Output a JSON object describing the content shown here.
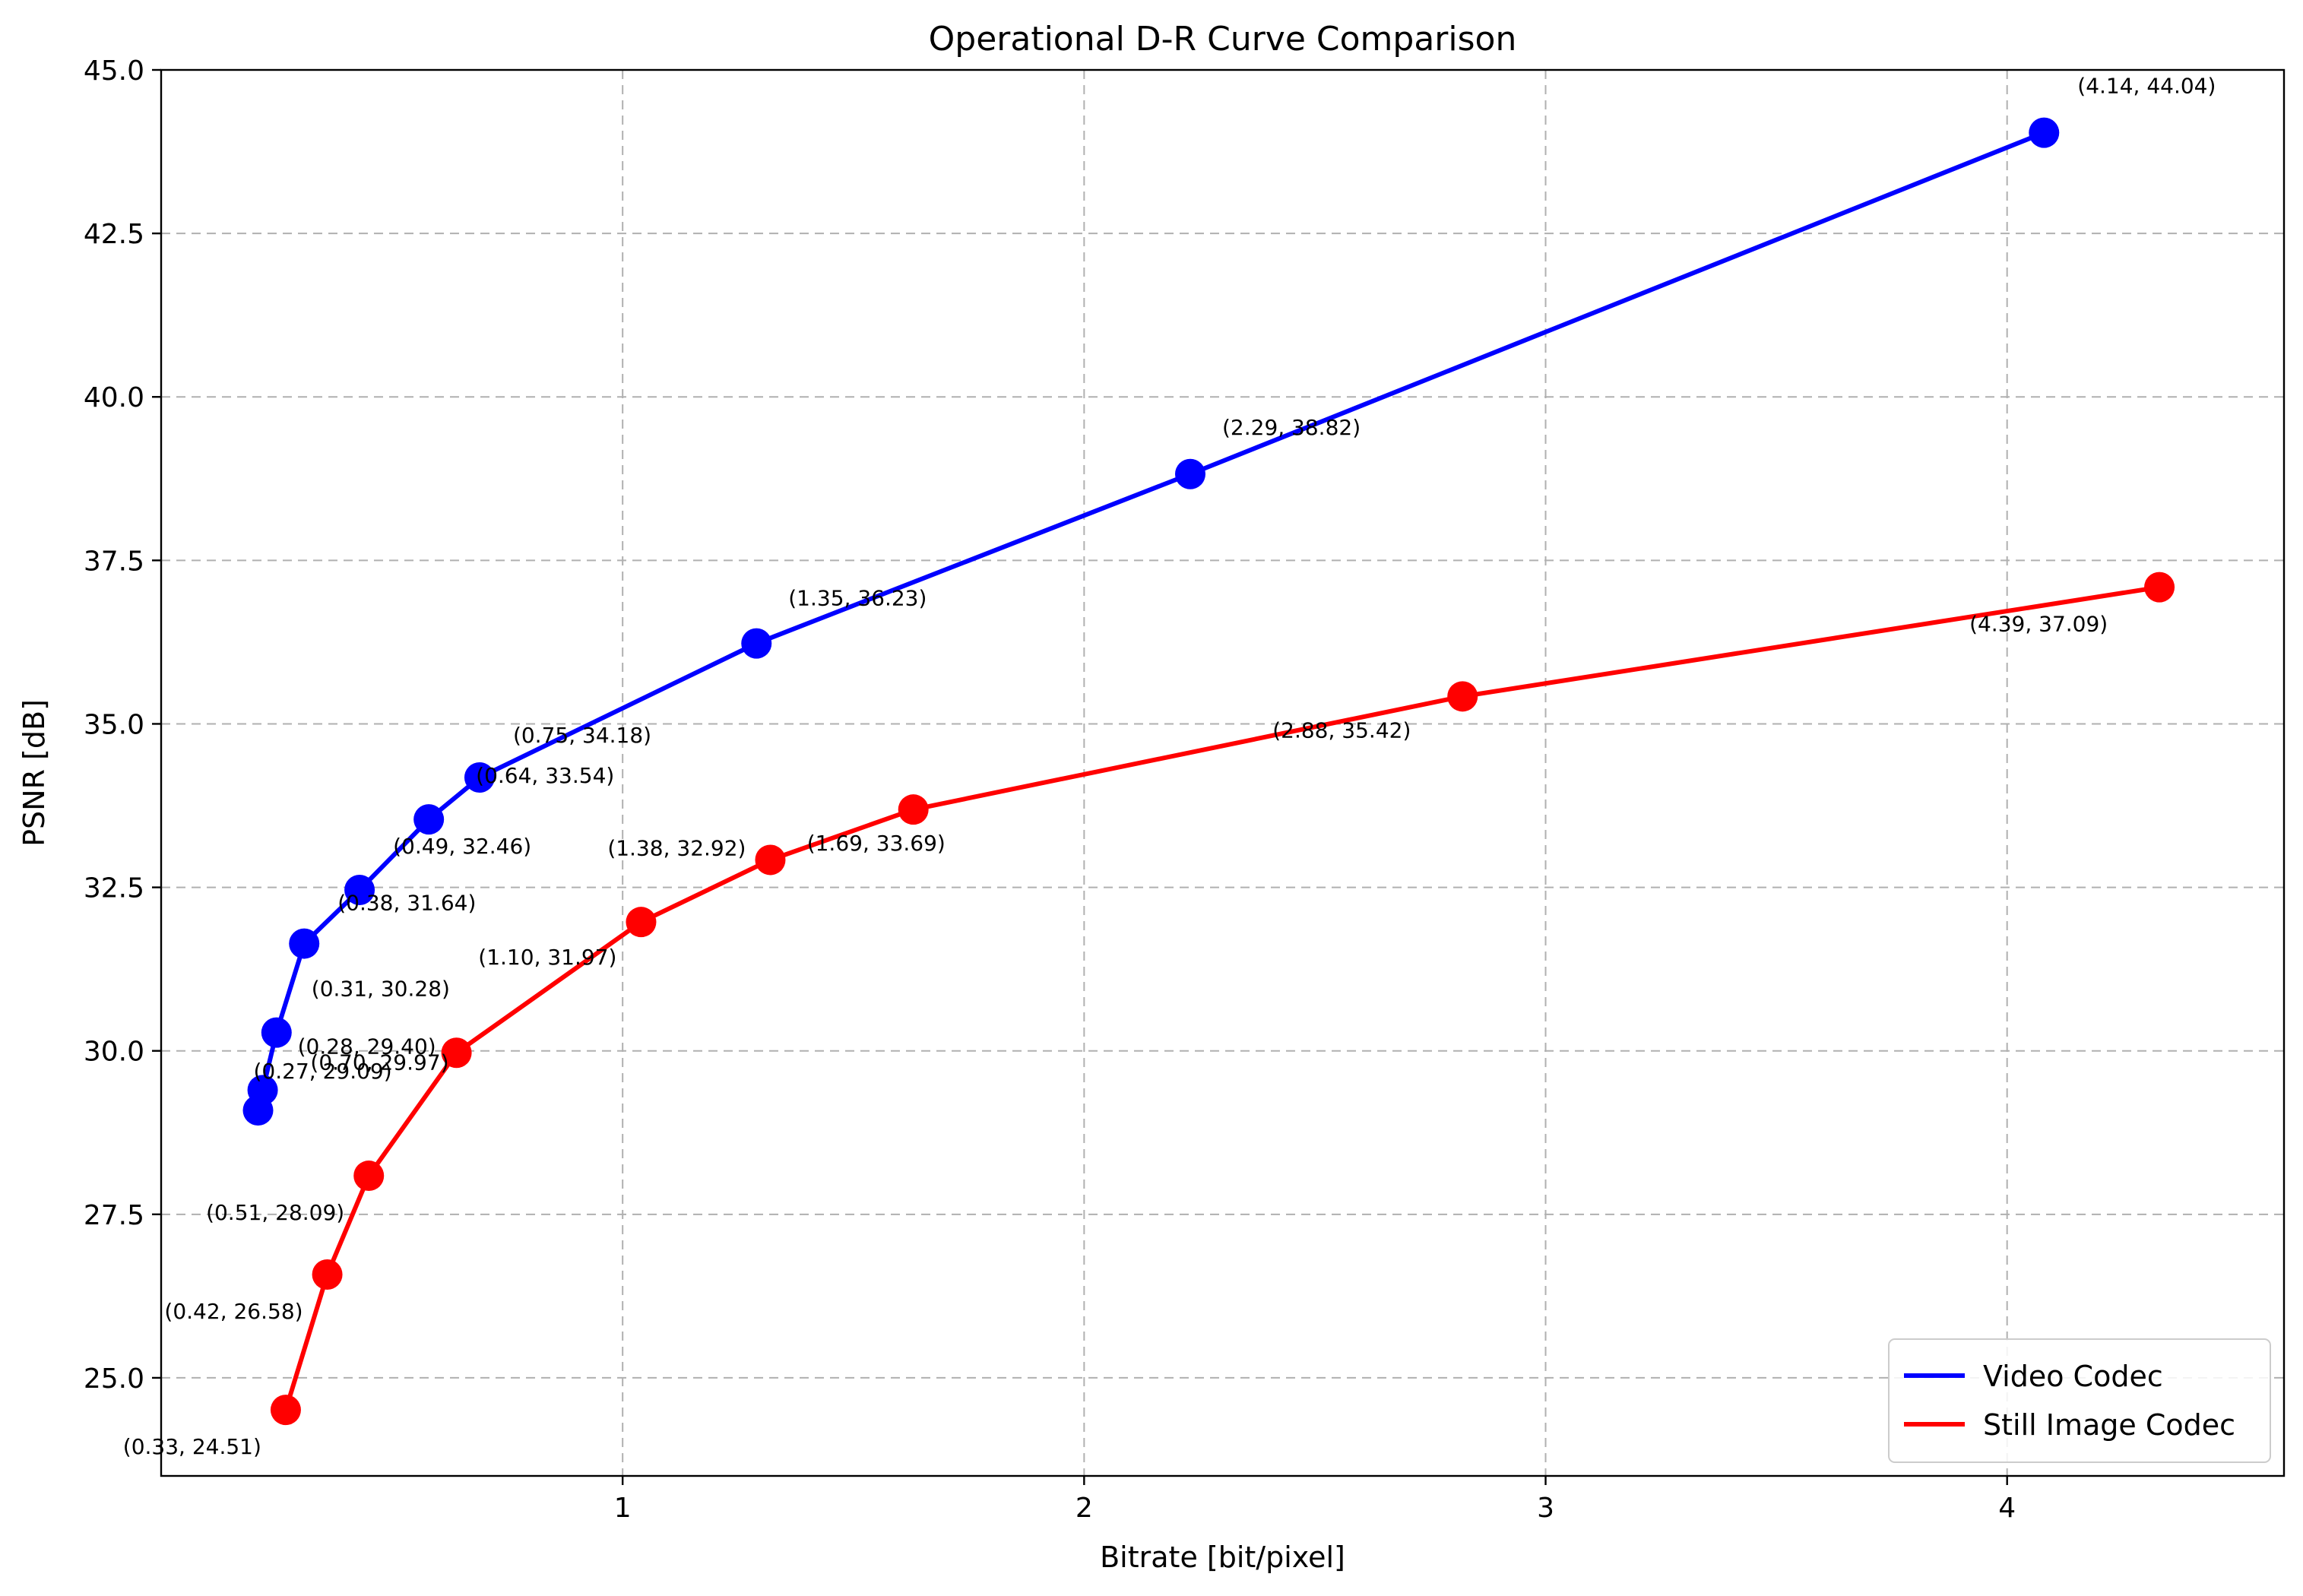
{
  "chart_data": {
    "type": "line",
    "title": "Operational D-R Curve Comparison",
    "xlabel": "Bitrate [bit/pixel]",
    "ylabel": "PSNR [dB]",
    "xlim": [
      0.0,
      4.6
    ],
    "ylim": [
      23.5,
      45.0
    ],
    "xticks": [
      1,
      2,
      3,
      4
    ],
    "xtick_labels": [
      "1",
      "2",
      "3",
      "4"
    ],
    "yticks": [
      25.0,
      27.5,
      30.0,
      32.5,
      35.0,
      37.5,
      40.0,
      42.5,
      45.0
    ],
    "ytick_labels": [
      "25.0",
      "27.5",
      "30.0",
      "32.5",
      "35.0",
      "37.5",
      "40.0",
      "42.5",
      "45.0"
    ],
    "grid": true,
    "legend_position": "lower-right",
    "series": [
      {
        "name": "Video Codec",
        "color": "#0000ff",
        "x": [
          0.21,
          0.22,
          0.25,
          0.31,
          0.43,
          0.58,
          0.69,
          1.29,
          2.23,
          4.08
        ],
        "y": [
          29.09,
          29.4,
          30.28,
          31.64,
          32.46,
          33.54,
          34.18,
          36.23,
          38.82,
          44.04
        ],
        "labels": [
          "(0.27, 29.09)",
          "(0.28, 29.40)",
          "(0.31, 30.28)",
          "(0.38, 31.64)",
          "(0.49, 32.46)",
          "(0.64, 33.54)",
          "(0.75, 34.18)",
          "(1.35, 36.23)",
          "(2.29, 38.82)",
          "(4.14, 44.04)"
        ]
      },
      {
        "name": "Still Image Codec",
        "color": "#ff0000",
        "x": [
          0.27,
          0.36,
          0.45,
          0.64,
          1.04,
          1.32,
          1.63,
          2.82,
          4.33
        ],
        "y": [
          24.51,
          26.58,
          28.09,
          29.97,
          31.97,
          32.92,
          33.69,
          35.42,
          37.09
        ],
        "labels": [
          "(0.33, 24.51)",
          "(0.42, 26.58)",
          "(0.51, 28.09)",
          "(0.70, 29.97)",
          "(1.10, 31.97)",
          "(1.38, 32.92)",
          "(1.69, 33.69)",
          "(2.88, 35.42)",
          "(4.39, 37.09)"
        ]
      }
    ]
  }
}
